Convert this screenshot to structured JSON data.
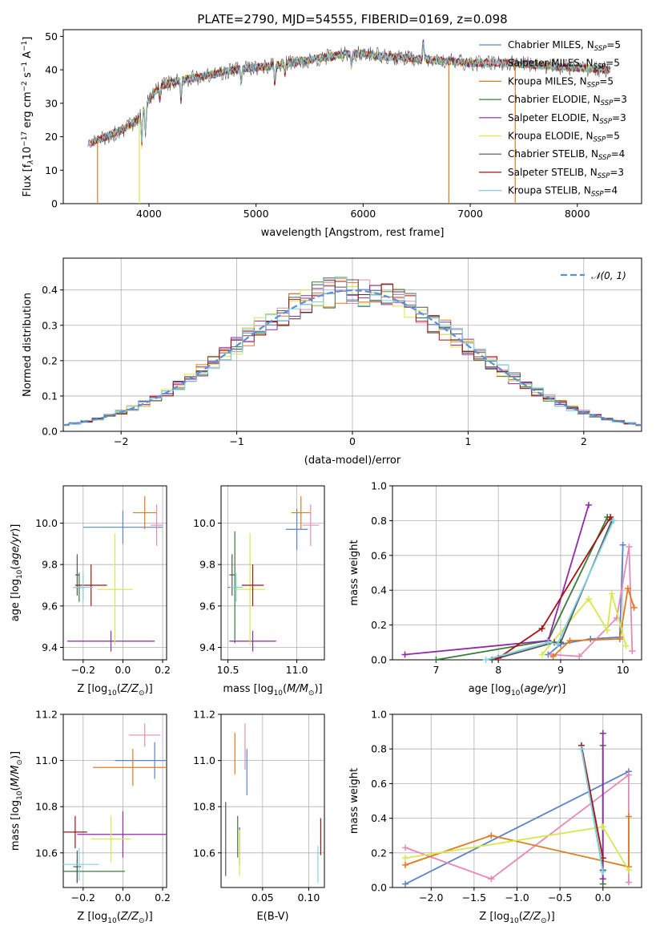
{
  "figure": {
    "title": "PLATE=2790, MJD=54555, FIBERID=0169, z=0.098"
  },
  "colors": {
    "Chabrier MILES": "#5b84c4",
    "Salpeter MILES": "#e58ab8",
    "Kroupa MILES": "#e07b1e",
    "Chabrier ELODIE": "#3a7a3a",
    "Salpeter ELODIE": "#8e2aa8",
    "Kroupa ELODIE": "#d6e84a",
    "Chabrier STELIB": "#555555",
    "Salpeter STELIB": "#a31515",
    "Kroupa STELIB": "#7fd3e3",
    "normal": "#5b8fd6"
  },
  "chart_data": [
    {
      "id": "spectrum",
      "type": "line",
      "xlabel": "wavelength [Angstrom, rest frame]",
      "ylabel": "Flux [f_λ 10^-17 erg cm^-2 s^-1 A^-1]",
      "xlim": [
        3200,
        8600
      ],
      "ylim": [
        0,
        52
      ],
      "xticks": [
        4000,
        5000,
        6000,
        7000,
        8000
      ],
      "yticks": [
        0,
        10,
        20,
        30,
        40,
        50
      ],
      "grid": false,
      "legend_position": "top-right",
      "continuum": {
        "x": [
          3450,
          3600,
          3750,
          3900,
          4000,
          4100,
          4300,
          4500,
          4800,
          5100,
          5500,
          5900,
          6200,
          6600,
          7000,
          7400,
          7800,
          8300
        ],
        "y": [
          18,
          20,
          22,
          25,
          31,
          35,
          37,
          38,
          40,
          41,
          43,
          45,
          44,
          43,
          42,
          42,
          41,
          40
        ]
      },
      "series": [
        {
          "name": "Chabrier MILES, N_SSP=5",
          "label_main": "Chabrier MILES, N",
          "label_sub": "SSP",
          "label_tail": "=5"
        },
        {
          "name": "Salpeter MILES, N_SSP=5",
          "label_main": "Salpeter MILES, N",
          "label_sub": "SSP",
          "label_tail": "=5"
        },
        {
          "name": "Kroupa MILES, N_SSP=5",
          "label_main": "Kroupa MILES, N",
          "label_sub": "SSP",
          "label_tail": "=5"
        },
        {
          "name": "Chabrier ELODIE, N_SSP=3",
          "label_main": "Chabrier ELODIE, N",
          "label_sub": "SSP",
          "label_tail": "=3"
        },
        {
          "name": "Salpeter ELODIE, N_SSP=3",
          "label_main": "Salpeter ELODIE, N",
          "label_sub": "SSP",
          "label_tail": "=3"
        },
        {
          "name": "Kroupa ELODIE, N_SSP=5",
          "label_main": "Kroupa ELODIE, N",
          "label_sub": "SSP",
          "label_tail": "=5"
        },
        {
          "name": "Chabrier STELIB, N_SSP=4",
          "label_main": "Chabrier STELIB, N",
          "label_sub": "SSP",
          "label_tail": "=4"
        },
        {
          "name": "Salpeter STELIB, N_SSP=3",
          "label_main": "Salpeter STELIB, N",
          "label_sub": "SSP",
          "label_tail": "=3"
        },
        {
          "name": "Kroupa STELIB, N_SSP=4",
          "label_main": "Kroupa STELIB, N",
          "label_sub": "SSP",
          "label_tail": "=4"
        }
      ]
    },
    {
      "id": "residuals",
      "type": "line",
      "xlabel": "(data-model)/error",
      "ylabel": "Normed distribution",
      "xlim": [
        -2.5,
        2.5
      ],
      "ylim": [
        0,
        0.49
      ],
      "xticks": [
        -2,
        -1,
        0,
        1,
        2
      ],
      "xtick_labels": [
        "−2",
        "−1",
        "0",
        "1",
        "2"
      ],
      "yticks": [
        0.0,
        0.1,
        0.2,
        0.3,
        0.4
      ],
      "ytick_labels": [
        "0.0",
        "0.1",
        "0.2",
        "0.3",
        "0.4"
      ],
      "grid": true,
      "legend_position": "top-right",
      "legend": "𝒩(0, 1)",
      "histogram_bin_width": 0.1
    },
    {
      "id": "age-vs-Z",
      "type": "scatter",
      "xlabel": "Z [log10(Z/Z⊙)]",
      "ylabel": "age  [log10(age/yr)]",
      "xlim": [
        -0.3,
        0.22
      ],
      "ylim": [
        9.34,
        10.18
      ],
      "xticks": [
        -0.2,
        0.0,
        0.2
      ],
      "xtick_labels": [
        "−0.2",
        "0.0",
        "0.2"
      ],
      "yticks": [
        9.4,
        9.6,
        9.8,
        10.0
      ],
      "ytick_labels": [
        "9.4",
        "9.6",
        "9.8",
        "10.0"
      ],
      "grid": true,
      "points": [
        {
          "series": "Chabrier MILES",
          "x": 0.0,
          "y": 9.98,
          "xerr": 0.2,
          "yerr": 0.08
        },
        {
          "series": "Salpeter MILES",
          "x": 0.17,
          "y": 9.99,
          "xerr": 0.03,
          "yerr": 0.1
        },
        {
          "series": "Kroupa MILES",
          "x": 0.11,
          "y": 10.05,
          "xerr": 0.06,
          "yerr": 0.08
        },
        {
          "series": "Chabrier ELODIE",
          "x": -0.22,
          "y": 9.69,
          "xerr": 0.03,
          "yerr": 0.07
        },
        {
          "series": "Salpeter ELODIE",
          "x": -0.06,
          "y": 9.43,
          "xerr": 0.22,
          "yerr": 0.05
        },
        {
          "series": "Kroupa ELODIE",
          "x": -0.04,
          "y": 9.68,
          "xerr": 0.09,
          "yerr": 0.27
        },
        {
          "series": "Chabrier STELIB",
          "x": -0.23,
          "y": 9.75,
          "xerr": 0.01,
          "yerr": 0.1
        },
        {
          "series": "Salpeter STELIB",
          "x": -0.16,
          "y": 9.7,
          "xerr": 0.08,
          "yerr": 0.1
        },
        {
          "series": "Kroupa STELIB",
          "x": -0.2,
          "y": 9.69,
          "xerr": 0.05,
          "yerr": 0.07
        }
      ]
    },
    {
      "id": "age-vs-mass",
      "type": "scatter",
      "xlabel": "mass [log10(M/M⊙)]",
      "ylabel": "",
      "xlim": [
        10.45,
        11.2
      ],
      "ylim": [
        9.34,
        10.18
      ],
      "xticks": [
        10.5,
        11.0
      ],
      "xtick_labels": [
        "10.5",
        "11.0"
      ],
      "yticks": [
        9.4,
        9.6,
        9.8,
        10.0
      ],
      "ytick_labels": [
        "9.4",
        "9.6",
        "9.8",
        "10.0"
      ],
      "grid": true,
      "points": [
        {
          "series": "Chabrier MILES",
          "x": 11.0,
          "y": 9.97,
          "xerr": 0.08,
          "yerr": 0.1
        },
        {
          "series": "Salpeter MILES",
          "x": 11.1,
          "y": 9.99,
          "xerr": 0.06,
          "yerr": 0.1
        },
        {
          "series": "Kroupa MILES",
          "x": 11.03,
          "y": 10.05,
          "xerr": 0.07,
          "yerr": 0.08
        },
        {
          "series": "Chabrier ELODIE",
          "x": 10.55,
          "y": 9.69,
          "xerr": 0.05,
          "yerr": 0.27
        },
        {
          "series": "Salpeter ELODIE",
          "x": 10.68,
          "y": 9.43,
          "xerr": 0.17,
          "yerr": 0.05
        },
        {
          "series": "Kroupa ELODIE",
          "x": 10.66,
          "y": 9.68,
          "xerr": 0.11,
          "yerr": 0.27
        },
        {
          "series": "Chabrier STELIB",
          "x": 10.53,
          "y": 9.75,
          "xerr": 0.02,
          "yerr": 0.1
        },
        {
          "series": "Salpeter STELIB",
          "x": 10.68,
          "y": 9.7,
          "xerr": 0.08,
          "yerr": 0.1
        },
        {
          "series": "Kroupa STELIB",
          "x": 10.56,
          "y": 9.69,
          "xerr": 0.05,
          "yerr": 0.07
        }
      ]
    },
    {
      "id": "mass-weight-vs-age",
      "type": "line",
      "xlabel": "age  [log10(age/yr)]",
      "ylabel": "mass weight",
      "xlim": [
        6.3,
        10.3
      ],
      "ylim": [
        0,
        1.0
      ],
      "xticks": [
        7,
        8,
        9,
        10
      ],
      "xtick_labels": [
        "7",
        "8",
        "9",
        "10"
      ],
      "yticks": [
        0.0,
        0.2,
        0.4,
        0.6,
        0.8,
        1.0
      ],
      "ytick_labels": [
        "0.0",
        "0.2",
        "0.4",
        "0.6",
        "0.8",
        "1.0"
      ],
      "grid": true,
      "series": [
        {
          "name": "Chabrier MILES",
          "x": [
            8.8,
            9.0,
            9.48,
            9.95,
            10.0
          ],
          "y": [
            0.03,
            0.09,
            0.12,
            0.13,
            0.66
          ]
        },
        {
          "name": "Salpeter MILES",
          "x": [
            8.85,
            9.3,
            9.9,
            10.1,
            10.15
          ],
          "y": [
            0.03,
            0.02,
            0.24,
            0.65,
            0.05
          ]
        },
        {
          "name": "Kroupa MILES",
          "x": [
            8.88,
            9.15,
            9.95,
            10.08,
            10.18
          ],
          "y": [
            0.02,
            0.11,
            0.12,
            0.41,
            0.3
          ]
        },
        {
          "name": "Chabrier ELODIE",
          "x": [
            7.0,
            8.8,
            9.75
          ],
          "y": [
            0.0,
            0.11,
            0.82
          ]
        },
        {
          "name": "Salpeter ELODIE",
          "x": [
            6.5,
            8.8,
            9.45
          ],
          "y": [
            0.03,
            0.11,
            0.89
          ]
        },
        {
          "name": "Kroupa ELODIE",
          "x": [
            8.7,
            9.45,
            9.75,
            9.82,
            10.05
          ],
          "y": [
            0.03,
            0.35,
            0.17,
            0.38,
            0.08
          ]
        },
        {
          "name": "Chabrier STELIB",
          "x": [
            7.9,
            8.9,
            9.0,
            9.82
          ],
          "y": [
            0.0,
            0.1,
            0.1,
            0.8
          ]
        },
        {
          "name": "Salpeter STELIB",
          "x": [
            8.0,
            8.7,
            9.8
          ],
          "y": [
            0.01,
            0.18,
            0.82
          ]
        },
        {
          "name": "Kroupa STELIB",
          "x": [
            7.8,
            8.8,
            8.95,
            9.85
          ],
          "y": [
            0.0,
            0.1,
            0.09,
            0.8
          ]
        }
      ]
    },
    {
      "id": "mass-vs-Z",
      "type": "scatter",
      "xlabel": "Z [log10(Z/Z⊙)]",
      "ylabel": "mass [log10(M/M⊙)]",
      "xlim": [
        -0.3,
        0.22
      ],
      "ylim": [
        10.45,
        11.2
      ],
      "xticks": [
        -0.2,
        0.0,
        0.2
      ],
      "xtick_labels": [
        "−0.2",
        "0.0",
        "0.2"
      ],
      "yticks": [
        10.6,
        10.8,
        11.0,
        11.2
      ],
      "ytick_labels": [
        "10.6",
        "10.8",
        "11.0",
        "11.2"
      ],
      "grid": true,
      "points": [
        {
          "series": "Chabrier MILES",
          "x": 0.16,
          "y": 11.0,
          "xerr": 0.2,
          "yerr": 0.08
        },
        {
          "series": "Salpeter MILES",
          "x": 0.11,
          "y": 11.11,
          "xerr": 0.08,
          "yerr": 0.05
        },
        {
          "series": "Kroupa MILES",
          "x": 0.05,
          "y": 10.97,
          "xerr": 0.2,
          "yerr": 0.08
        },
        {
          "series": "Chabrier ELODIE",
          "x": -0.23,
          "y": 10.52,
          "xerr": 0.24,
          "yerr": 0.05
        },
        {
          "series": "Salpeter ELODIE",
          "x": 0.0,
          "y": 10.68,
          "xerr": 0.23,
          "yerr": 0.1
        },
        {
          "series": "Kroupa ELODIE",
          "x": -0.06,
          "y": 10.66,
          "xerr": 0.1,
          "yerr": 0.1
        },
        {
          "series": "Chabrier STELIB",
          "x": -0.23,
          "y": 10.54,
          "xerr": 0.02,
          "yerr": 0.07
        },
        {
          "series": "Salpeter STELIB",
          "x": -0.24,
          "y": 10.69,
          "xerr": 0.06,
          "yerr": 0.07
        },
        {
          "series": "Kroupa STELIB",
          "x": -0.22,
          "y": 10.55,
          "xerr": 0.1,
          "yerr": 0.07
        }
      ]
    },
    {
      "id": "mass-vs-EBV",
      "type": "scatter",
      "xlabel": "E(B-V)",
      "ylabel": "",
      "xlim": [
        0.005,
        0.117
      ],
      "ylim": [
        10.45,
        11.2
      ],
      "xticks": [
        0.05,
        0.1
      ],
      "xtick_labels": [
        "0.05",
        "0.10"
      ],
      "yticks": [
        10.6,
        10.8,
        11.0,
        11.2
      ],
      "ytick_labels": [
        "10.6",
        "10.8",
        "11.0",
        "11.2"
      ],
      "grid": true,
      "points": [
        {
          "series": "Chabrier MILES",
          "x": 0.033,
          "y": 10.95,
          "xerr": 0.0,
          "yerr": 0.1
        },
        {
          "series": "Salpeter MILES",
          "x": 0.031,
          "y": 11.06,
          "xerr": 0.0,
          "yerr": 0.1
        },
        {
          "series": "Kroupa MILES",
          "x": 0.02,
          "y": 11.03,
          "xerr": 0.0,
          "yerr": 0.09
        },
        {
          "series": "Chabrier ELODIE",
          "x": 0.023,
          "y": 10.67,
          "xerr": 0.0,
          "yerr": 0.09
        },
        {
          "series": "Salpeter ELODIE",
          "x": 0.025,
          "y": 10.63,
          "xerr": 0.0,
          "yerr": 0.08
        },
        {
          "series": "Kroupa ELODIE",
          "x": 0.025,
          "y": 10.6,
          "xerr": 0.0,
          "yerr": 0.1
        },
        {
          "series": "Chabrier STELIB",
          "x": 0.01,
          "y": 10.66,
          "xerr": 0.0,
          "yerr": 0.16
        },
        {
          "series": "Salpeter STELIB",
          "x": 0.113,
          "y": 10.67,
          "xerr": 0.0,
          "yerr": 0.08
        },
        {
          "series": "Kroupa STELIB",
          "x": 0.11,
          "y": 10.55,
          "xerr": 0.0,
          "yerr": 0.08
        }
      ]
    },
    {
      "id": "mass-weight-vs-Z",
      "type": "line",
      "xlabel": "Z [log10(Z/Z⊙)]",
      "ylabel": "mass weight",
      "xlim": [
        -2.45,
        0.45
      ],
      "ylim": [
        0,
        1.0
      ],
      "xticks": [
        -2.0,
        -1.5,
        -1.0,
        -0.5,
        0.0
      ],
      "xtick_labels": [
        "−2.0",
        "−1.5",
        "−1.0",
        "−0.5",
        "0.0"
      ],
      "yticks": [
        0.0,
        0.2,
        0.4,
        0.6,
        0.8,
        1.0
      ],
      "ytick_labels": [
        "0.0",
        "0.2",
        "0.4",
        "0.6",
        "0.8",
        "1.0"
      ],
      "grid": true,
      "series": [
        {
          "name": "Chabrier MILES",
          "x": [
            -2.3,
            0.3
          ],
          "y": [
            0.02,
            0.67
          ]
        },
        {
          "name": "Salpeter MILES",
          "x": [
            -2.3,
            -1.3,
            0.3,
            0.3
          ],
          "y": [
            0.23,
            0.05,
            0.65,
            0.03
          ]
        },
        {
          "name": "Kroupa MILES",
          "x": [
            -2.3,
            -1.3,
            0.3,
            0.3
          ],
          "y": [
            0.13,
            0.3,
            0.12,
            0.41
          ]
        },
        {
          "name": "Chabrier ELODIE",
          "x": [
            0.0,
            0.0
          ],
          "y": [
            0.82,
            0.02
          ]
        },
        {
          "name": "Salpeter ELODIE",
          "x": [
            0.0,
            0.0
          ],
          "y": [
            0.89,
            0.05
          ]
        },
        {
          "name": "Kroupa ELODIE",
          "x": [
            -2.3,
            0.0,
            0.3
          ],
          "y": [
            0.17,
            0.35,
            0.1
          ]
        },
        {
          "name": "Chabrier STELIB",
          "x": [
            -0.25,
            0.0
          ],
          "y": [
            0.8,
            0.1
          ]
        },
        {
          "name": "Salpeter STELIB",
          "x": [
            -0.25,
            0.0
          ],
          "y": [
            0.82,
            0.17
          ]
        },
        {
          "name": "Kroupa STELIB",
          "x": [
            -0.25,
            0.0
          ],
          "y": [
            0.8,
            0.09
          ]
        }
      ]
    }
  ]
}
